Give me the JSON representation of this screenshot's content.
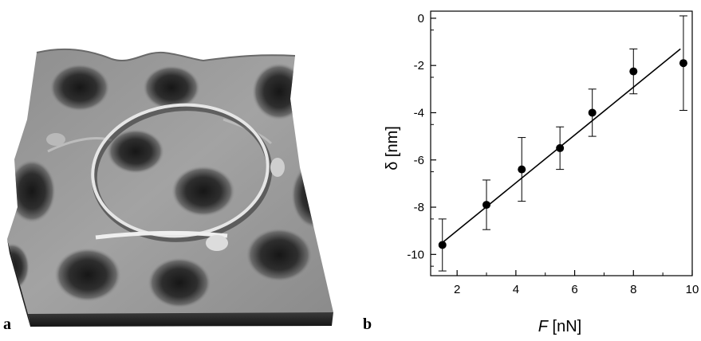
{
  "panels": {
    "a_label": "a",
    "b_label": "b"
  },
  "chart_data": {
    "type": "scatter",
    "xlabel_var": "F",
    "xlabel_unit": " [nN]",
    "ylabel": "δ [nm]",
    "xlim": [
      1.1,
      10.0
    ],
    "ylim": [
      -10.9,
      0.3
    ],
    "x_ticks": [
      2,
      4,
      6,
      8,
      10
    ],
    "y_ticks": [
      0,
      -2,
      -4,
      -6,
      -8,
      -10
    ],
    "x_tick_labels": [
      "2",
      "4",
      "6",
      "8",
      "10"
    ],
    "y_tick_labels": [
      "0",
      "-2",
      "-4",
      "-6",
      "-8",
      "-10"
    ],
    "grid": false,
    "series": [
      {
        "points": [
          {
            "x": 1.5,
            "y": -9.6,
            "err": 1.1
          },
          {
            "x": 3.0,
            "y": -7.9,
            "err": 1.05
          },
          {
            "x": 4.2,
            "y": -6.4,
            "err": 1.35
          },
          {
            "x": 5.5,
            "y": -5.5,
            "err": 0.9
          },
          {
            "x": 6.6,
            "y": -4.0,
            "err": 1.0
          },
          {
            "x": 8.0,
            "y": -2.25,
            "err": 0.95
          },
          {
            "x": 9.7,
            "y": -1.9,
            "err": 2.0
          }
        ]
      }
    ],
    "fit_line": {
      "x0": 1.5,
      "y0": -9.5,
      "x1": 9.6,
      "y1": -1.3
    }
  },
  "colors": {
    "marker": "#000000",
    "axis": "#000000",
    "background": "#ffffff"
  }
}
